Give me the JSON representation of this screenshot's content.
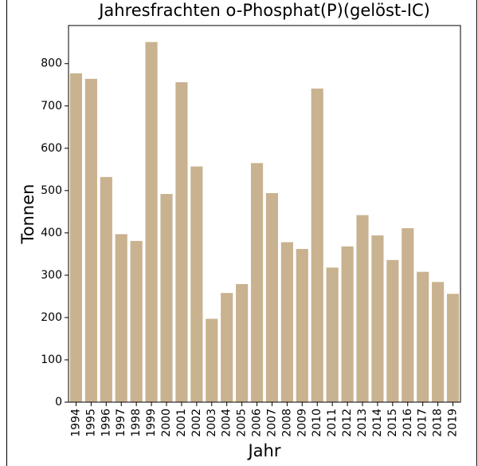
{
  "chart_data": {
    "type": "bar",
    "title": "Jahresfrachten o-Phosphat(P)(gelöst-IC)",
    "x_label": "Jahr",
    "y_label": "Tonnen",
    "categories": [
      "1994",
      "1995",
      "1996",
      "1997",
      "1998",
      "1999",
      "2000",
      "2001",
      "2002",
      "2003",
      "2004",
      "2005",
      "2006",
      "2007",
      "2008",
      "2009",
      "2010",
      "2011",
      "2012",
      "2013",
      "2014",
      "2015",
      "2016",
      "2017",
      "2018",
      "2019"
    ],
    "values": [
      777,
      764,
      532,
      397,
      381,
      851,
      492,
      756,
      557,
      197,
      258,
      279,
      565,
      494,
      378,
      362,
      741,
      318,
      368,
      442,
      394,
      336,
      411,
      308,
      284,
      256
    ],
    "color": "#c9b28f",
    "ylim": [
      0,
      890
    ],
    "yticks": [
      0,
      100,
      200,
      300,
      400,
      500,
      600,
      700,
      800
    ],
    "grid": false
  }
}
